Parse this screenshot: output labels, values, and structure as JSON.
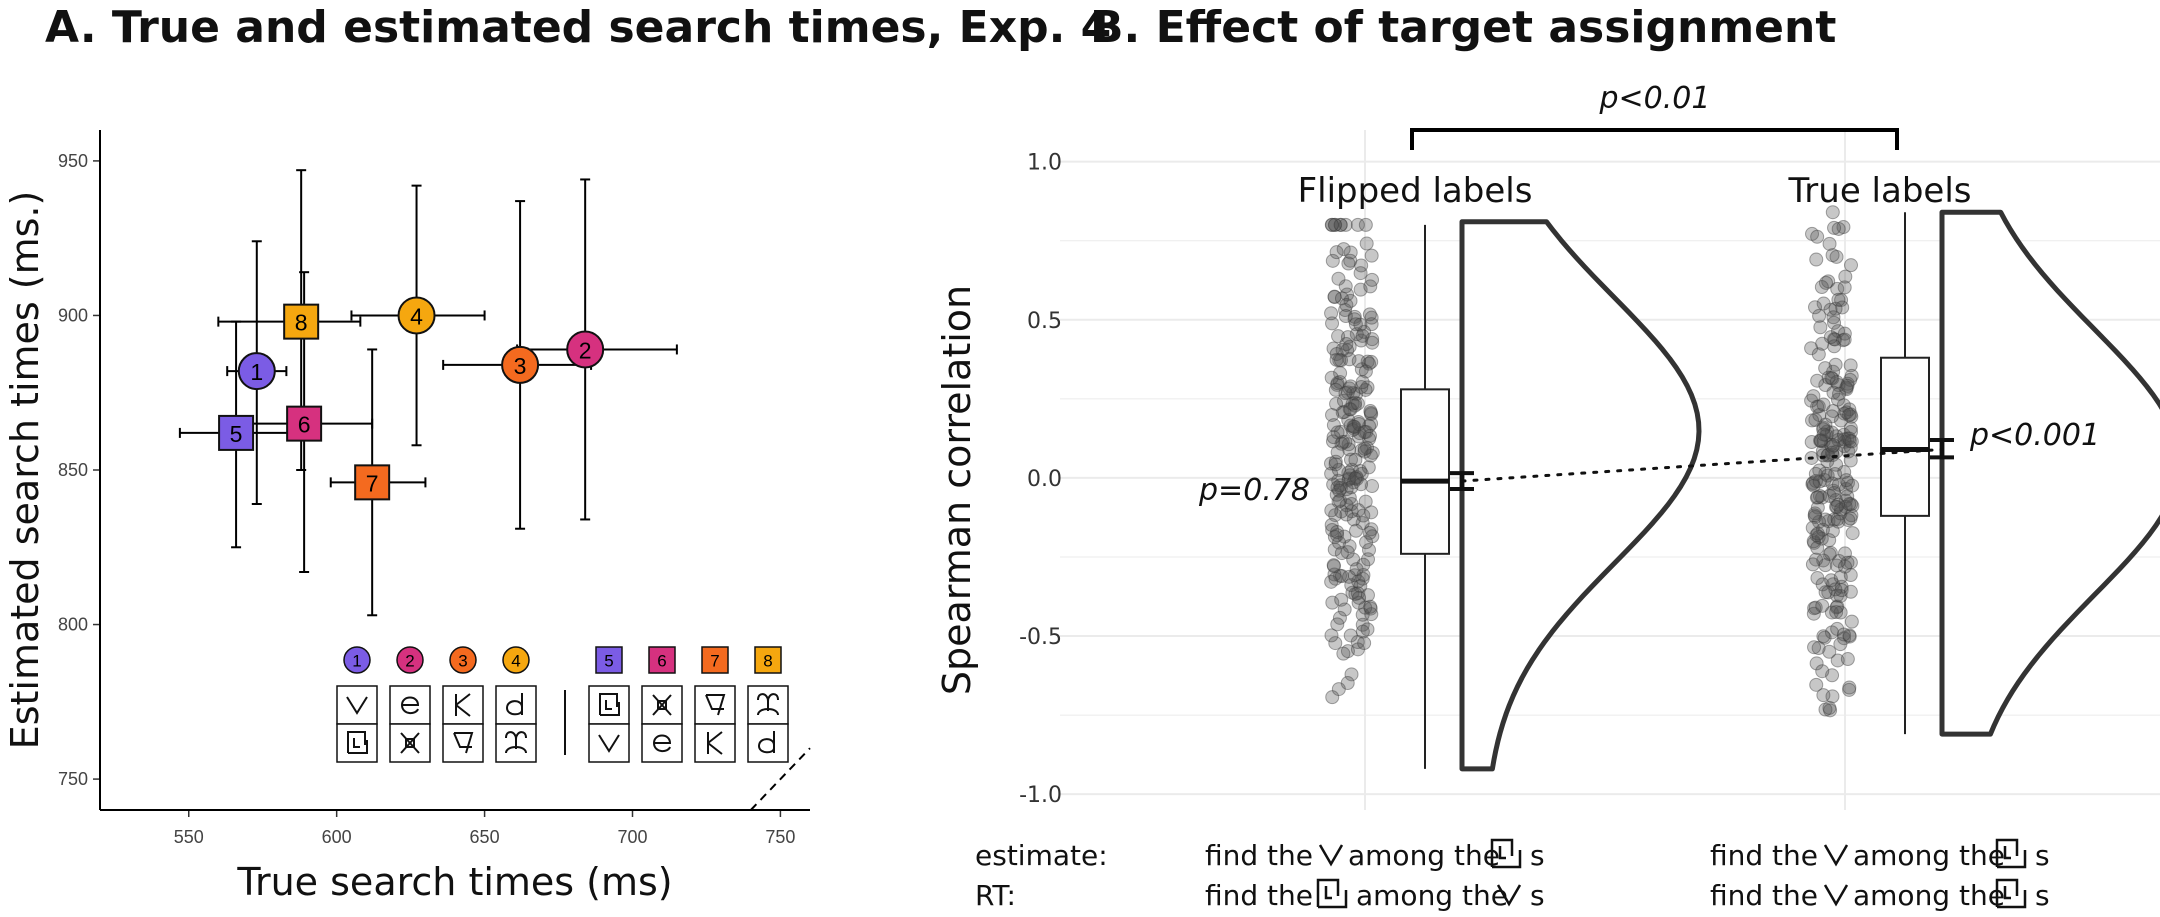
{
  "chart_data": [
    {
      "type": "scatter",
      "title": "A. True and estimated search times, Exp. 4",
      "xlabel": "True search times (ms)",
      "ylabel": "Estimated search times (ms.)",
      "xlim": [
        520,
        760
      ],
      "ylim": [
        740,
        960
      ],
      "xticks": [
        "550",
        "600",
        "650",
        "700",
        "750"
      ],
      "yticks": [
        "750",
        "800",
        "850",
        "900",
        "950"
      ],
      "points": [
        {
          "label": "1",
          "shape": "circle",
          "color": "#7B5CE5",
          "x": 573,
          "y": 882,
          "x_err": [
            563,
            583
          ],
          "y_err": [
            839,
            924
          ]
        },
        {
          "label": "2",
          "shape": "circle",
          "color": "#D6317F",
          "x": 684,
          "y": 889,
          "x_err": [
            661,
            715
          ],
          "y_err": [
            834,
            944
          ]
        },
        {
          "label": "3",
          "shape": "circle",
          "color": "#F46A1F",
          "x": 662,
          "y": 884,
          "x_err": [
            636,
            686
          ],
          "y_err": [
            831,
            937
          ]
        },
        {
          "label": "4",
          "shape": "circle",
          "color": "#F5A70F",
          "x": 627,
          "y": 900,
          "x_err": [
            605,
            650
          ],
          "y_err": [
            858,
            942
          ]
        },
        {
          "label": "5",
          "shape": "square",
          "color": "#7B5CE5",
          "x": 566,
          "y": 862,
          "x_err": [
            547,
            585
          ],
          "y_err": [
            825,
            898
          ]
        },
        {
          "label": "6",
          "shape": "square",
          "color": "#D6317F",
          "x": 589,
          "y": 865,
          "x_err": [
            568,
            612
          ],
          "y_err": [
            817,
            914
          ]
        },
        {
          "label": "7",
          "shape": "square",
          "color": "#F46A1F",
          "x": 612,
          "y": 846,
          "x_err": [
            598,
            630
          ],
          "y_err": [
            803,
            889
          ]
        },
        {
          "label": "8",
          "shape": "square",
          "color": "#F5A70F",
          "x": 588,
          "y": 898,
          "x_err": [
            560,
            608
          ],
          "y_err": [
            850,
            947
          ]
        }
      ],
      "reference_line": "dashed identity line y = x",
      "inset_legend": {
        "circles": [
          "1",
          "2",
          "3",
          "4"
        ],
        "squares": [
          "5",
          "6",
          "7",
          "8"
        ]
      }
    },
    {
      "type": "raincloud",
      "title": "B. Effect of target assignment",
      "ylabel": "Spearman correlation",
      "ylim": [
        -1.05,
        1.1
      ],
      "yticks": [
        "1.0",
        "0.5",
        "0.0",
        "-0.5",
        "-1.0"
      ],
      "groups": [
        {
          "name": "Flipped labels",
          "box": {
            "min": -0.92,
            "q1": -0.24,
            "median": -0.01,
            "q3": 0.28,
            "max": 0.8
          },
          "mean": -0.01,
          "ci": [
            -0.035,
            0.015
          ],
          "violin_range": [
            -0.92,
            0.81
          ],
          "violin_peak": 0.15,
          "p_value": "p=0.78"
        },
        {
          "name": "True labels",
          "box": {
            "min": -0.81,
            "q1": -0.12,
            "median": 0.09,
            "q3": 0.38,
            "max": 0.84
          },
          "mean": 0.09,
          "ci": [
            0.065,
            0.12
          ],
          "violin_range": [
            -0.81,
            0.84
          ],
          "violin_peak": 0.05,
          "p_value": "p<0.001"
        }
      ],
      "comparison": "p<0.01"
    }
  ],
  "footer": {
    "estimate_label": "estimate:",
    "rt_label": "RT:",
    "left_estimate": [
      "find the",
      "among the",
      "s"
    ],
    "left_rt": [
      "find the",
      "among the",
      "s"
    ],
    "right_estimate": [
      "find the",
      "among the",
      "s"
    ],
    "right_rt": [
      "find the",
      "among the",
      "s"
    ]
  },
  "colors": {
    "purple": "#7B5CE5",
    "magenta": "#D6317F",
    "orange": "#F46A1F",
    "gold": "#F5A70F"
  }
}
